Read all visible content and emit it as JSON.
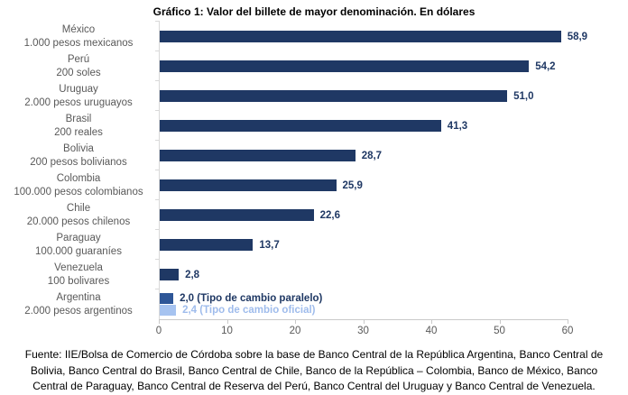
{
  "title": "Gráfico 1: Valor del billete de mayor denominación. En dólares",
  "colors": {
    "bar_dark": "#1F3864",
    "bar_parallel": "#2E5697",
    "bar_official": "#A6C3F0",
    "label_dark": "#1F3864",
    "label_official": "#9FBCEC",
    "text_gray": "#595959",
    "axis_gray": "#C9C9C9"
  },
  "chart_data": {
    "type": "bar",
    "orientation": "horizontal",
    "title": "Gráfico 1: Valor del billete de mayor denominación. En dólares",
    "xlabel": "",
    "ylabel": "",
    "xlim": [
      0,
      60
    ],
    "x_ticks": [
      0,
      10,
      20,
      30,
      40,
      50,
      60
    ],
    "grid": false,
    "rows": [
      {
        "country": "México",
        "denomination": "1.000 pesos mexicanos",
        "bars": [
          {
            "value": 58.9,
            "label": "58,9",
            "color": "dark"
          }
        ]
      },
      {
        "country": "Perú",
        "denomination": "200 soles",
        "bars": [
          {
            "value": 54.2,
            "label": "54,2",
            "color": "dark"
          }
        ]
      },
      {
        "country": "Uruguay",
        "denomination": "2.000 pesos uruguayos",
        "bars": [
          {
            "value": 51.0,
            "label": "51,0",
            "color": "dark"
          }
        ]
      },
      {
        "country": "Brasil",
        "denomination": "200 reales",
        "bars": [
          {
            "value": 41.3,
            "label": "41,3",
            "color": "dark"
          }
        ]
      },
      {
        "country": "Bolivia",
        "denomination": "200 pesos bolivianos",
        "bars": [
          {
            "value": 28.7,
            "label": "28,7",
            "color": "dark"
          }
        ]
      },
      {
        "country": "Colombia",
        "denomination": "100.000 pesos colombianos",
        "bars": [
          {
            "value": 25.9,
            "label": "25,9",
            "color": "dark"
          }
        ]
      },
      {
        "country": "Chile",
        "denomination": "20.000 pesos chilenos",
        "bars": [
          {
            "value": 22.6,
            "label": "22,6",
            "color": "dark"
          }
        ]
      },
      {
        "country": "Paraguay",
        "denomination": "100.000 guaraníes",
        "bars": [
          {
            "value": 13.7,
            "label": "13,7",
            "color": "dark"
          }
        ]
      },
      {
        "country": "Venezuela",
        "denomination": "100 bolivares",
        "bars": [
          {
            "value": 2.8,
            "label": "2,8",
            "color": "dark"
          }
        ]
      },
      {
        "country": "Argentina",
        "denomination": "2.000 pesos argentinos",
        "bars": [
          {
            "value": 2.0,
            "label": "2,0 (Tipo de cambio paralelo)",
            "color": "parallel"
          },
          {
            "value": 2.4,
            "label": "2,4 (Tipo de cambio oficial)",
            "color": "official"
          }
        ]
      }
    ]
  },
  "footer_lines": [
    "Fuente: IIE/Bolsa de Comercio de Córdoba sobre la base de Banco Central de la República Argentina, Banco Central de",
    "Bolivia, Banco Central do Brasil, Banco Central de Chile, Banco de la República – Colombia, Banco de México, Banco",
    "Central de Paraguay, Banco Central de Reserva del Perú, Banco Central del Uruguay y Banco Central de Venezuela."
  ]
}
